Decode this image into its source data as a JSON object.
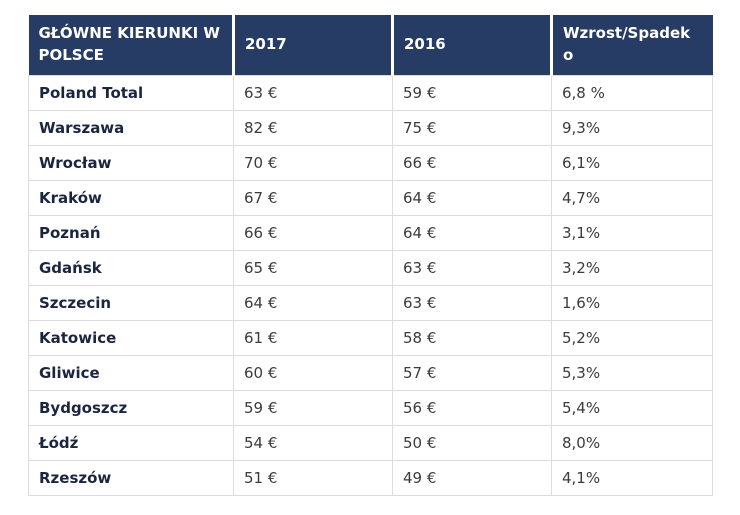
{
  "colors": {
    "header_background": "#263C64",
    "header_text": "#ffffff",
    "city_text": "#1c2540",
    "value_text": "#3b3b3b",
    "grid_border": "#dcdcdc",
    "page_background": "#ffffff"
  },
  "chart_data": {
    "type": "table",
    "columns": [
      "GŁÓWNE KIERUNKI W POLSCE",
      "2017",
      "2016",
      "Wzrost/Spadek o"
    ],
    "rows": [
      [
        "Poland Total",
        "63 €",
        "59 €",
        "6,8 %"
      ],
      [
        "Warszawa",
        "82 €",
        "75 €",
        "9,3%"
      ],
      [
        "Wrocław",
        "70 €",
        "66 €",
        "6,1%"
      ],
      [
        "Kraków",
        "67 €",
        "64 €",
        "4,7%"
      ],
      [
        "Poznań",
        "66 €",
        "64 €",
        "3,1%"
      ],
      [
        "Gdańsk",
        "65 €",
        "63 €",
        "3,2%"
      ],
      [
        "Szczecin",
        "64 €",
        "63 €",
        "1,6%"
      ],
      [
        "Katowice",
        "61 €",
        "58 €",
        "5,2%"
      ],
      [
        "Gliwice",
        "60 €",
        "57 €",
        "5,3%"
      ],
      [
        "Bydgoszcz",
        "59 €",
        "56 €",
        "5,4%"
      ],
      [
        "Łódź",
        "54 €",
        "50 €",
        "8,0%"
      ],
      [
        "Rzeszów",
        "51 €",
        "49 €",
        "4,1%"
      ]
    ]
  }
}
